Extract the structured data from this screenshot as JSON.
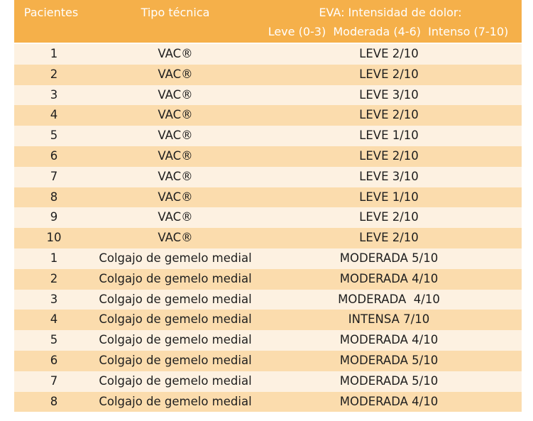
{
  "table": {
    "header": {
      "columns": [
        "Pacientes",
        "Tipo técnica",
        "EVA: Intensidad de dolor:"
      ],
      "eva_scale": "Leve (0-3)  Moderada (4-6)  Intenso (7-10)"
    },
    "rows": [
      [
        "1",
        "VAC®",
        "LEVE 2/10"
      ],
      [
        "2",
        "VAC®",
        "LEVE 2/10"
      ],
      [
        "3",
        "VAC®",
        "LEVE 3/10"
      ],
      [
        "4",
        "VAC®",
        "LEVE 2/10"
      ],
      [
        "5",
        "VAC®",
        "LEVE 1/10"
      ],
      [
        "6",
        "VAC®",
        "LEVE 2/10"
      ],
      [
        "7",
        "VAC®",
        "LEVE 3/10"
      ],
      [
        "8",
        "VAC®",
        "LEVE 1/10"
      ],
      [
        "9",
        "VAC®",
        "LEVE 2/10"
      ],
      [
        "10",
        "VAC®",
        "LEVE 2/10"
      ],
      [
        "1",
        "Colgajo de gemelo medial",
        "MODERADA 5/10"
      ],
      [
        "2",
        "Colgajo de gemelo medial",
        "MODERADA 4/10"
      ],
      [
        "3",
        "Colgajo de gemelo medial",
        "MODERADA  4/10"
      ],
      [
        "4",
        "Colgajo de gemelo medial",
        "INTENSA 7/10"
      ],
      [
        "5",
        "Colgajo de gemelo medial",
        "MODERADA 4/10"
      ],
      [
        "6",
        "Colgajo de gemelo medial",
        "MODERADA 5/10"
      ],
      [
        "7",
        "Colgajo de gemelo medial",
        "MODERADA 5/10"
      ],
      [
        "8",
        "Colgajo de gemelo medial",
        "MODERADA 4/10"
      ]
    ]
  }
}
